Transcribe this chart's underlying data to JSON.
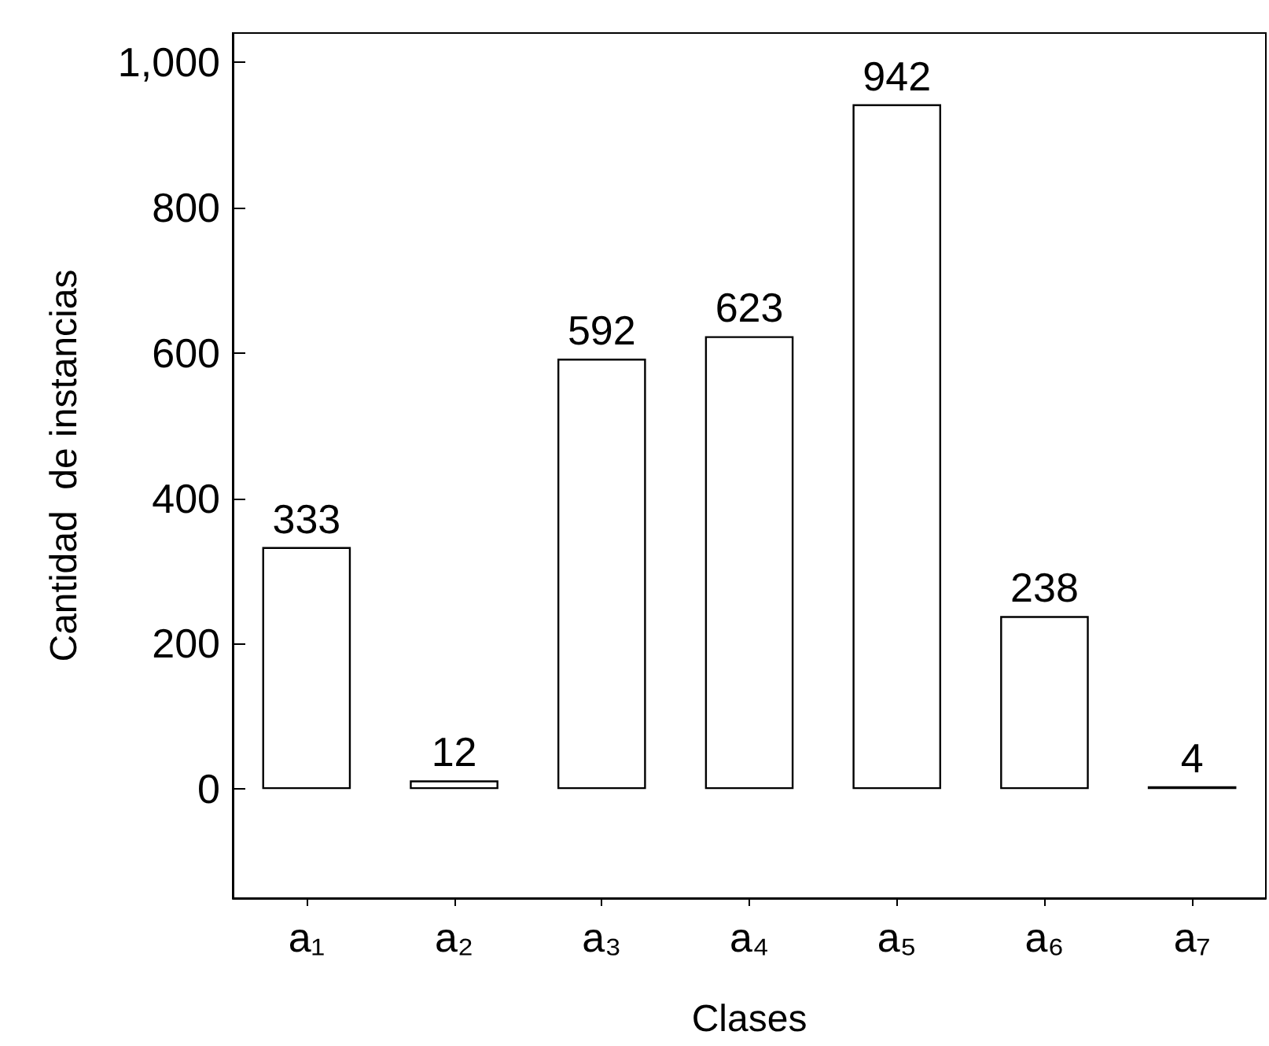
{
  "chart_data": {
    "type": "bar",
    "xlabel": "Clases",
    "ylabel": "Cantidad  de instancias",
    "categories": [
      "a₁",
      "a₂",
      "a₃",
      "a₄",
      "a₅",
      "a₆",
      "a₇"
    ],
    "values": [
      333,
      12,
      592,
      623,
      942,
      238,
      4
    ],
    "color": "#ffffff",
    "ylim": [
      -150,
      1040
    ],
    "yticks": [
      0,
      200,
      400,
      600,
      800,
      {
        "value": 1000,
        "label": "1,000"
      }
    ],
    "data_labels": true,
    "grid": false
  }
}
